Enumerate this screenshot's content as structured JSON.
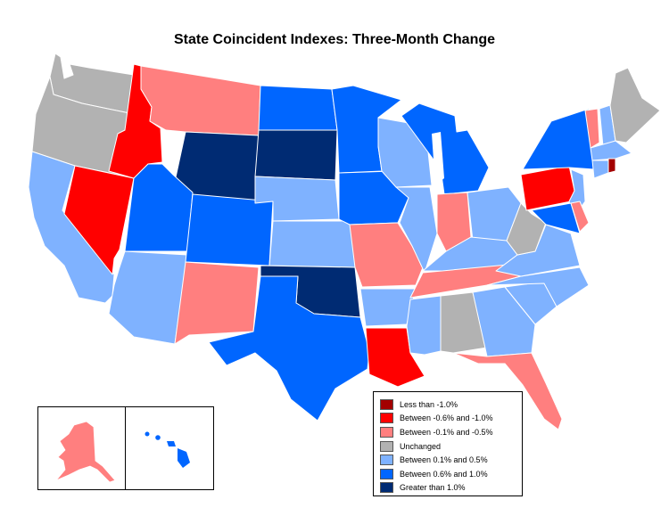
{
  "title": "State Coincident Indexes: Three-Month Change",
  "colors": {
    "less_than_neg1": "#a30000",
    "neg06_to_neg1": "#ff0000",
    "neg01_to_neg05": "#ff7f7f",
    "unchanged": "#b2b2b2",
    "pos01_to_pos05": "#7fb2ff",
    "pos06_to_pos1": "#0066ff",
    "greater_than_1": "#002b73"
  },
  "legend": [
    {
      "label": "Less than -1.0%",
      "category": "less_than_neg1",
      "color": "#a30000"
    },
    {
      "label": "Between -0.6% and -1.0%",
      "category": "neg06_to_neg1",
      "color": "#ff0000"
    },
    {
      "label": "Between -0.1% and -0.5%",
      "category": "neg01_to_neg05",
      "color": "#ff7f7f"
    },
    {
      "label": "Unchanged",
      "category": "unchanged",
      "color": "#b2b2b2"
    },
    {
      "label": "Between 0.1% and 0.5%",
      "category": "pos01_to_pos05",
      "color": "#7fb2ff"
    },
    {
      "label": "Between 0.6% and 1.0%",
      "category": "pos06_to_pos1",
      "color": "#0066ff"
    },
    {
      "label": "Greater than 1.0%",
      "category": "greater_than_1",
      "color": "#002b73"
    }
  ],
  "states": {
    "WA": "unchanged",
    "OR": "unchanged",
    "CA": "pos01_to_pos05",
    "NV": "neg06_to_neg1",
    "ID": "neg06_to_neg1",
    "MT": "neg01_to_neg05",
    "WY": "greater_than_1",
    "UT": "pos06_to_pos1",
    "AZ": "pos01_to_pos05",
    "CO": "pos06_to_pos1",
    "NM": "neg01_to_neg05",
    "ND": "pos06_to_pos1",
    "SD": "greater_than_1",
    "NE": "pos01_to_pos05",
    "KS": "pos01_to_pos05",
    "OK": "greater_than_1",
    "TX": "pos06_to_pos1",
    "MN": "pos06_to_pos1",
    "IA": "pos06_to_pos1",
    "MO": "neg01_to_neg05",
    "AR": "pos01_to_pos05",
    "LA": "neg06_to_neg1",
    "WI": "pos01_to_pos05",
    "IL": "pos01_to_pos05",
    "MI": "pos06_to_pos1",
    "IN": "neg01_to_neg05",
    "OH": "pos01_to_pos05",
    "KY": "pos01_to_pos05",
    "TN": "neg01_to_neg05",
    "MS": "pos01_to_pos05",
    "AL": "unchanged",
    "GA": "pos01_to_pos05",
    "FL": "neg01_to_neg05",
    "SC": "pos01_to_pos05",
    "NC": "pos01_to_pos05",
    "VA": "pos01_to_pos05",
    "WV": "unchanged",
    "PA": "neg06_to_neg1",
    "NY": "pos06_to_pos1",
    "VT": "neg01_to_neg05",
    "NH": "pos01_to_pos05",
    "ME": "unchanged",
    "MA": "pos01_to_pos05",
    "RI": "less_than_neg1",
    "CT": "pos01_to_pos05",
    "NJ": "pos01_to_pos05",
    "DE": "neg01_to_neg05",
    "MD": "pos06_to_pos1",
    "AK": "neg01_to_neg05",
    "HI": "pos06_to_pos1"
  }
}
